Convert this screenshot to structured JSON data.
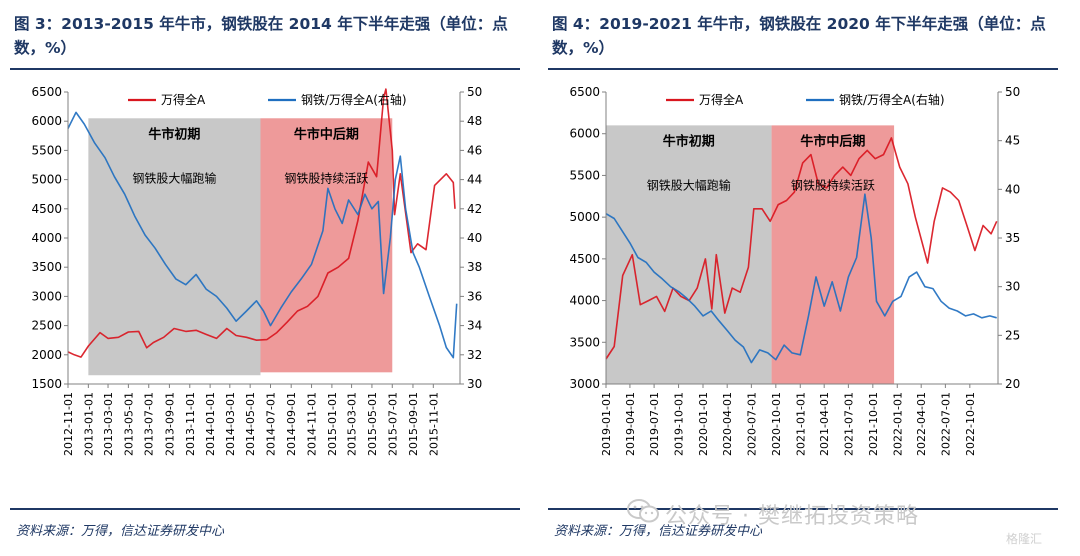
{
  "figures": [
    {
      "title": "图 3：2013-2015 年牛市，钢铁股在 2014 年下半年走强（单位：点数，%）",
      "source": "资料来源：万得，信达证券研发中心"
    },
    {
      "title": "图 4：2019-2021 年牛市，钢铁股在 2020 年下半年走强（单位：点数，%）",
      "source": "资料来源：万得，信达证券研发中心"
    }
  ],
  "watermark": {
    "text": "公众号 · 樊继拓投资策略",
    "icon": "wechat-icon",
    "logo": "格隆汇"
  },
  "chart_data": [
    {
      "type": "line",
      "y_left": {
        "range": [
          1500,
          6500
        ],
        "ticks": [
          1500,
          2000,
          2500,
          3000,
          3500,
          4000,
          4500,
          5000,
          5500,
          6000,
          6500
        ]
      },
      "y_right": {
        "range": [
          30,
          50
        ],
        "ticks": [
          30,
          32,
          34,
          36,
          38,
          40,
          42,
          44,
          46,
          48,
          50
        ]
      },
      "x_ticks": [
        "2012-11-01",
        "2013-01-01",
        "2013-03-01",
        "2013-05-01",
        "2013-07-01",
        "2013-09-01",
        "2013-11-01",
        "2014-01-01",
        "2014-03-01",
        "2014-05-01",
        "2014-07-01",
        "2014-09-01",
        "2014-11-01",
        "2015-01-01",
        "2015-03-01",
        "2015-05-01",
        "2015-07-01",
        "2015-09-01",
        "2015-11-01"
      ],
      "x_range": [
        "2012-11-01",
        "2016-01-20"
      ],
      "grid": false,
      "legend": "top",
      "regions": [
        {
          "label": "牛市初期",
          "sublabel": "钢铁股大幅跑输",
          "from": "2013-01-01",
          "to": "2014-06-01",
          "color": "#c8c8c8",
          "ylim": [
            1650,
            6050
          ]
        },
        {
          "label": "牛市中后期",
          "sublabel": "钢铁股持续活跃",
          "from": "2014-06-01",
          "to": "2015-07-01",
          "color": "#ee9a9a",
          "ylim": [
            1700,
            6050
          ]
        }
      ],
      "series": [
        {
          "name": "万得全A",
          "axis": "left",
          "color": "#d9161f",
          "points": [
            [
              "2012-11-01",
              2050
            ],
            [
              "2012-11-20",
              2000
            ],
            [
              "2012-12-10",
              1960
            ],
            [
              "2013-01-01",
              2150
            ],
            [
              "2013-02-05",
              2380
            ],
            [
              "2013-03-01",
              2280
            ],
            [
              "2013-04-01",
              2300
            ],
            [
              "2013-05-01",
              2390
            ],
            [
              "2013-06-01",
              2400
            ],
            [
              "2013-06-25",
              2120
            ],
            [
              "2013-07-15",
              2210
            ],
            [
              "2013-08-15",
              2300
            ],
            [
              "2013-09-15",
              2450
            ],
            [
              "2013-10-20",
              2400
            ],
            [
              "2013-11-20",
              2420
            ],
            [
              "2013-12-20",
              2350
            ],
            [
              "2014-01-20",
              2280
            ],
            [
              "2014-02-20",
              2450
            ],
            [
              "2014-03-20",
              2330
            ],
            [
              "2014-04-20",
              2300
            ],
            [
              "2014-05-20",
              2250
            ],
            [
              "2014-06-20",
              2260
            ],
            [
              "2014-07-20",
              2380
            ],
            [
              "2014-08-20",
              2560
            ],
            [
              "2014-09-20",
              2750
            ],
            [
              "2014-10-20",
              2830
            ],
            [
              "2014-11-20",
              3000
            ],
            [
              "2014-12-20",
              3400
            ],
            [
              "2015-01-20",
              3500
            ],
            [
              "2015-02-20",
              3650
            ],
            [
              "2015-03-20",
              4300
            ],
            [
              "2015-04-20",
              5300
            ],
            [
              "2015-05-15",
              5050
            ],
            [
              "2015-06-05",
              6400
            ],
            [
              "2015-06-12",
              6550
            ],
            [
              "2015-07-01",
              5500
            ],
            [
              "2015-07-08",
              4400
            ],
            [
              "2015-07-25",
              5100
            ],
            [
              "2015-08-26",
              3750
            ],
            [
              "2015-09-15",
              3900
            ],
            [
              "2015-10-10",
              3800
            ],
            [
              "2015-11-05",
              4900
            ],
            [
              "2015-12-10",
              5100
            ],
            [
              "2015-12-31",
              4950
            ],
            [
              "2016-01-05",
              4500
            ]
          ]
        },
        {
          "name": "钢铁/万得全A(右轴)",
          "axis": "right",
          "color": "#1f6fc0",
          "points": [
            [
              "2012-11-01",
              47.5
            ],
            [
              "2012-11-25",
              48.6
            ],
            [
              "2012-12-20",
              47.8
            ],
            [
              "2013-01-20",
              46.5
            ],
            [
              "2013-02-20",
              45.5
            ],
            [
              "2013-03-20",
              44.2
            ],
            [
              "2013-04-20",
              43.0
            ],
            [
              "2013-05-20",
              41.5
            ],
            [
              "2013-06-20",
              40.2
            ],
            [
              "2013-07-20",
              39.3
            ],
            [
              "2013-08-20",
              38.2
            ],
            [
              "2013-09-20",
              37.2
            ],
            [
              "2013-10-20",
              36.8
            ],
            [
              "2013-11-20",
              37.5
            ],
            [
              "2013-12-20",
              36.5
            ],
            [
              "2014-01-20",
              36.0
            ],
            [
              "2014-02-20",
              35.2
            ],
            [
              "2014-03-20",
              34.3
            ],
            [
              "2014-04-20",
              35.0
            ],
            [
              "2014-05-20",
              35.7
            ],
            [
              "2014-06-10",
              35.0
            ],
            [
              "2014-07-01",
              34.0
            ],
            [
              "2014-08-01",
              35.2
            ],
            [
              "2014-09-01",
              36.3
            ],
            [
              "2014-10-01",
              37.2
            ],
            [
              "2014-11-01",
              38.2
            ],
            [
              "2014-12-05",
              40.5
            ],
            [
              "2014-12-20",
              43.4
            ],
            [
              "2015-01-10",
              42.0
            ],
            [
              "2015-02-01",
              41.0
            ],
            [
              "2015-02-20",
              42.6
            ],
            [
              "2015-03-20",
              41.6
            ],
            [
              "2015-04-10",
              43.0
            ],
            [
              "2015-05-01",
              42.0
            ],
            [
              "2015-05-20",
              42.5
            ],
            [
              "2015-06-05",
              36.2
            ],
            [
              "2015-06-25",
              40.0
            ],
            [
              "2015-07-10",
              44.0
            ],
            [
              "2015-07-25",
              45.6
            ],
            [
              "2015-08-10",
              42.0
            ],
            [
              "2015-09-01",
              39.0
            ],
            [
              "2015-09-20",
              38.0
            ],
            [
              "2015-10-20",
              36.0
            ],
            [
              "2015-11-20",
              34.0
            ],
            [
              "2015-12-10",
              32.5
            ],
            [
              "2015-12-31",
              31.8
            ],
            [
              "2016-01-10",
              35.5
            ]
          ]
        }
      ]
    },
    {
      "type": "line",
      "y_left": {
        "range": [
          3000,
          6500
        ],
        "ticks": [
          3000,
          3500,
          4000,
          4500,
          5000,
          5500,
          6000,
          6500
        ]
      },
      "y_right": {
        "range": [
          20,
          50
        ],
        "ticks": [
          20,
          25,
          30,
          35,
          40,
          45,
          50
        ]
      },
      "x_ticks": [
        "2019-01-01",
        "2019-04-01",
        "2019-07-01",
        "2019-10-01",
        "2020-01-01",
        "2020-04-01",
        "2020-07-01",
        "2020-10-01",
        "2021-01-01",
        "2021-04-01",
        "2021-07-01",
        "2021-10-01",
        "2022-01-01",
        "2022-04-01",
        "2022-07-01",
        "2022-10-01"
      ],
      "x_range": [
        "2019-01-01",
        "2023-01-15"
      ],
      "grid": false,
      "legend": "top",
      "regions": [
        {
          "label": "牛市初期",
          "sublabel": "钢铁股大幅跑输",
          "from": "2019-01-01",
          "to": "2020-09-15",
          "color": "#c8c8c8",
          "ylim": [
            3000,
            6100
          ]
        },
        {
          "label": "牛市中后期",
          "sublabel": "钢铁股持续活跃",
          "from": "2020-09-15",
          "to": "2021-12-20",
          "color": "#ee9a9a",
          "ylim": [
            3000,
            6100
          ]
        }
      ],
      "series": [
        {
          "name": "万得全A",
          "axis": "left",
          "color": "#d9161f",
          "points": [
            [
              "2019-01-01",
              3300
            ],
            [
              "2019-02-01",
              3450
            ],
            [
              "2019-03-05",
              4300
            ],
            [
              "2019-04-10",
              4550
            ],
            [
              "2019-05-10",
              3950
            ],
            [
              "2019-06-10",
              4000
            ],
            [
              "2019-07-10",
              4050
            ],
            [
              "2019-08-10",
              3870
            ],
            [
              "2019-09-10",
              4150
            ],
            [
              "2019-10-10",
              4050
            ],
            [
              "2019-11-10",
              4000
            ],
            [
              "2019-12-10",
              4150
            ],
            [
              "2020-01-10",
              4500
            ],
            [
              "2020-02-03",
              3900
            ],
            [
              "2020-02-20",
              4550
            ],
            [
              "2020-03-23",
              3850
            ],
            [
              "2020-04-20",
              4150
            ],
            [
              "2020-05-20",
              4100
            ],
            [
              "2020-06-20",
              4400
            ],
            [
              "2020-07-10",
              5100
            ],
            [
              "2020-08-10",
              5100
            ],
            [
              "2020-09-10",
              4950
            ],
            [
              "2020-10-10",
              5150
            ],
            [
              "2020-11-10",
              5200
            ],
            [
              "2020-12-10",
              5300
            ],
            [
              "2021-01-10",
              5650
            ],
            [
              "2021-02-10",
              5750
            ],
            [
              "2021-03-10",
              5400
            ],
            [
              "2021-04-10",
              5350
            ],
            [
              "2021-05-10",
              5500
            ],
            [
              "2021-06-10",
              5600
            ],
            [
              "2021-07-10",
              5500
            ],
            [
              "2021-08-10",
              5700
            ],
            [
              "2021-09-10",
              5800
            ],
            [
              "2021-10-10",
              5700
            ],
            [
              "2021-11-10",
              5750
            ],
            [
              "2021-12-10",
              5950
            ],
            [
              "2022-01-10",
              5600
            ],
            [
              "2022-02-10",
              5400
            ],
            [
              "2022-03-10",
              5000
            ],
            [
              "2022-04-25",
              4450
            ],
            [
              "2022-05-20",
              4950
            ],
            [
              "2022-06-20",
              5350
            ],
            [
              "2022-07-20",
              5300
            ],
            [
              "2022-08-20",
              5200
            ],
            [
              "2022-09-20",
              4900
            ],
            [
              "2022-10-20",
              4600
            ],
            [
              "2022-11-20",
              4900
            ],
            [
              "2022-12-20",
              4800
            ],
            [
              "2023-01-10",
              4950
            ]
          ]
        },
        {
          "name": "钢铁/万得全A(右轴)",
          "axis": "right",
          "color": "#1f6fc0",
          "points": [
            [
              "2019-01-01",
              37.5
            ],
            [
              "2019-02-01",
              37.0
            ],
            [
              "2019-03-01",
              35.8
            ],
            [
              "2019-04-01",
              34.5
            ],
            [
              "2019-05-01",
              33.0
            ],
            [
              "2019-06-01",
              32.5
            ],
            [
              "2019-07-01",
              31.5
            ],
            [
              "2019-08-01",
              30.8
            ],
            [
              "2019-09-01",
              30.0
            ],
            [
              "2019-10-01",
              29.5
            ],
            [
              "2019-11-01",
              28.8
            ],
            [
              "2019-12-01",
              28.0
            ],
            [
              "2020-01-01",
              27.0
            ],
            [
              "2020-02-01",
              27.5
            ],
            [
              "2020-03-01",
              26.5
            ],
            [
              "2020-04-01",
              25.5
            ],
            [
              "2020-05-01",
              24.5
            ],
            [
              "2020-06-01",
              23.8
            ],
            [
              "2020-07-01",
              22.2
            ],
            [
              "2020-08-01",
              23.5
            ],
            [
              "2020-09-01",
              23.2
            ],
            [
              "2020-10-01",
              22.5
            ],
            [
              "2020-11-01",
              24.0
            ],
            [
              "2020-12-01",
              23.2
            ],
            [
              "2021-01-01",
              23.0
            ],
            [
              "2021-02-01",
              27.0
            ],
            [
              "2021-03-01",
              31.0
            ],
            [
              "2021-04-01",
              28.0
            ],
            [
              "2021-05-01",
              30.5
            ],
            [
              "2021-06-01",
              27.5
            ],
            [
              "2021-07-01",
              31.0
            ],
            [
              "2021-08-01",
              33.0
            ],
            [
              "2021-09-01",
              39.5
            ],
            [
              "2021-09-25",
              35.0
            ],
            [
              "2021-10-15",
              28.5
            ],
            [
              "2021-11-15",
              27.0
            ],
            [
              "2021-12-15",
              28.5
            ],
            [
              "2022-01-15",
              29.0
            ],
            [
              "2022-02-15",
              31.0
            ],
            [
              "2022-03-15",
              31.5
            ],
            [
              "2022-04-15",
              30.0
            ],
            [
              "2022-05-15",
              29.8
            ],
            [
              "2022-06-15",
              28.5
            ],
            [
              "2022-07-15",
              27.8
            ],
            [
              "2022-08-15",
              27.5
            ],
            [
              "2022-09-15",
              27.0
            ],
            [
              "2022-10-15",
              27.2
            ],
            [
              "2022-11-15",
              26.8
            ],
            [
              "2022-12-15",
              27.0
            ],
            [
              "2023-01-10",
              26.8
            ]
          ]
        }
      ]
    }
  ]
}
